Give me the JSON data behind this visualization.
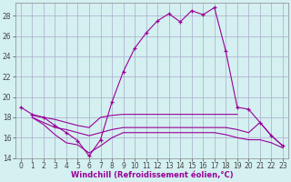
{
  "bg_color": "#d4f0f0",
  "grid_color": "#aaaacc",
  "line_color": "#990099",
  "xlabel": "Windchill (Refroidissement éolien,°C)",
  "hours": [
    0,
    1,
    2,
    3,
    4,
    5,
    6,
    7,
    8,
    9,
    10,
    11,
    12,
    13,
    14,
    15,
    16,
    17,
    18,
    19,
    20,
    21,
    22,
    23
  ],
  "curve1": [
    19.0,
    18.3,
    18.0,
    17.2,
    16.5,
    15.7,
    14.2,
    15.8,
    19.5,
    22.5,
    24.8,
    26.3,
    27.5,
    28.2,
    27.4,
    28.5,
    28.1,
    28.8,
    24.5,
    19.0,
    18.8,
    17.5,
    16.2,
    15.2
  ],
  "curve2": [
    null,
    18.2,
    18.0,
    17.8,
    17.5,
    17.2,
    17.0,
    18.0,
    18.2,
    18.3,
    18.3,
    18.3,
    18.3,
    18.3,
    18.3,
    18.3,
    18.3,
    18.3,
    18.3,
    18.3,
    null,
    null,
    null,
    null
  ],
  "curve3": [
    null,
    18.0,
    17.5,
    17.0,
    16.8,
    16.5,
    16.2,
    16.5,
    16.8,
    17.0,
    17.0,
    17.0,
    17.0,
    17.0,
    17.0,
    17.0,
    17.0,
    17.0,
    17.0,
    16.8,
    16.5,
    17.5,
    16.2,
    15.2
  ],
  "curve4": [
    null,
    18.0,
    17.3,
    16.3,
    15.5,
    15.3,
    14.5,
    15.2,
    16.0,
    16.5,
    16.5,
    16.5,
    16.5,
    16.5,
    16.5,
    16.5,
    16.5,
    16.5,
    16.3,
    16.0,
    15.8,
    15.8,
    15.5,
    15.0
  ],
  "xmin": 0,
  "xmax": 23,
  "ymin": 14,
  "ymax": 29,
  "yticks": [
    14,
    16,
    18,
    20,
    22,
    24,
    26,
    28
  ],
  "xticks": [
    0,
    1,
    2,
    3,
    4,
    5,
    6,
    7,
    8,
    9,
    10,
    11,
    12,
    13,
    14,
    15,
    16,
    17,
    18,
    19,
    20,
    21,
    22,
    23
  ],
  "marker_indices1": [
    0,
    1,
    2,
    3,
    4,
    5,
    6,
    7,
    8,
    9,
    10,
    11,
    12,
    13,
    14,
    15,
    16,
    17,
    18,
    19,
    20,
    21,
    22,
    23
  ],
  "tick_fontsize": 5.5,
  "label_fontsize": 6.0
}
